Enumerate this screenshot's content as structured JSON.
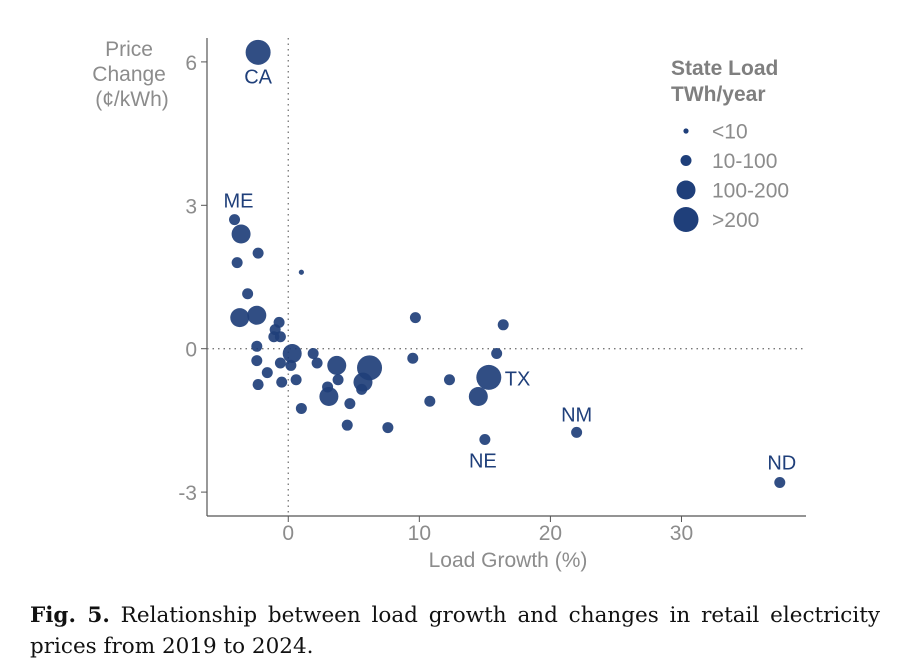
{
  "chart_data": {
    "type": "scatter",
    "title": "",
    "xlabel": "Load Growth (%)",
    "ylabel_lines": [
      "Price",
      "Change",
      "(¢/kWh)"
    ],
    "xlim": [
      -6.2,
      39.5
    ],
    "ylim": [
      -3.5,
      6.5
    ],
    "xticks": [
      0,
      10,
      20,
      30
    ],
    "yticks": [
      -3,
      0,
      3,
      6
    ],
    "xtick_labels": [
      "0",
      "10",
      "20",
      "30"
    ],
    "ytick_labels": [
      "-3",
      "0",
      "3",
      "6"
    ],
    "reference_lines": {
      "x": 0,
      "y": 0
    },
    "legend": {
      "title_lines": [
        "State Load",
        "TWh/year"
      ],
      "entries": [
        {
          "label": "<10",
          "size": "tiny"
        },
        {
          "label": "10-100",
          "size": "small"
        },
        {
          "label": "100-200",
          "size": "medium"
        },
        {
          "label": ">200",
          "size": "large"
        }
      ],
      "position": "top-right"
    },
    "marker_color": "#1f3f7a",
    "points": [
      {
        "x": -2.3,
        "y": 6.2,
        "size": "large",
        "label": "CA"
      },
      {
        "x": -4.1,
        "y": 2.7,
        "size": "small",
        "label": "ME"
      },
      {
        "x": -3.6,
        "y": 2.4,
        "size": "medium"
      },
      {
        "x": -2.3,
        "y": 2.0,
        "size": "small"
      },
      {
        "x": -3.9,
        "y": 1.8,
        "size": "small"
      },
      {
        "x": 1.0,
        "y": 1.6,
        "size": "tiny"
      },
      {
        "x": -3.1,
        "y": 1.15,
        "size": "small"
      },
      {
        "x": -3.7,
        "y": 0.65,
        "size": "medium"
      },
      {
        "x": -2.4,
        "y": 0.7,
        "size": "medium"
      },
      {
        "x": -0.7,
        "y": 0.55,
        "size": "small"
      },
      {
        "x": -1.0,
        "y": 0.4,
        "size": "small"
      },
      {
        "x": -1.1,
        "y": 0.25,
        "size": "small"
      },
      {
        "x": -0.6,
        "y": 0.25,
        "size": "small"
      },
      {
        "x": -2.4,
        "y": 0.05,
        "size": "small"
      },
      {
        "x": -2.4,
        "y": -0.25,
        "size": "small"
      },
      {
        "x": -1.6,
        "y": -0.5,
        "size": "small"
      },
      {
        "x": -2.3,
        "y": -0.75,
        "size": "small"
      },
      {
        "x": -0.6,
        "y": -0.3,
        "size": "small"
      },
      {
        "x": 0.3,
        "y": -0.1,
        "size": "medium"
      },
      {
        "x": 0.2,
        "y": -0.35,
        "size": "small"
      },
      {
        "x": -0.5,
        "y": -0.7,
        "size": "small"
      },
      {
        "x": 0.6,
        "y": -0.65,
        "size": "small"
      },
      {
        "x": 1.9,
        "y": -0.1,
        "size": "small"
      },
      {
        "x": 2.2,
        "y": -0.3,
        "size": "small"
      },
      {
        "x": 1.0,
        "y": -1.25,
        "size": "small"
      },
      {
        "x": 3.7,
        "y": -0.35,
        "size": "medium"
      },
      {
        "x": 3.8,
        "y": -0.65,
        "size": "small"
      },
      {
        "x": 3.0,
        "y": -0.8,
        "size": "small"
      },
      {
        "x": 3.1,
        "y": -1.0,
        "size": "medium"
      },
      {
        "x": 4.7,
        "y": -1.15,
        "size": "small"
      },
      {
        "x": 4.5,
        "y": -1.6,
        "size": "small"
      },
      {
        "x": 6.2,
        "y": -0.4,
        "size": "large"
      },
      {
        "x": 5.7,
        "y": -0.7,
        "size": "medium"
      },
      {
        "x": 5.6,
        "y": -0.85,
        "size": "small"
      },
      {
        "x": 7.6,
        "y": -1.65,
        "size": "small"
      },
      {
        "x": 9.7,
        "y": 0.65,
        "size": "small"
      },
      {
        "x": 9.5,
        "y": -0.2,
        "size": "small"
      },
      {
        "x": 10.8,
        "y": -1.1,
        "size": "small"
      },
      {
        "x": 12.3,
        "y": -0.65,
        "size": "small"
      },
      {
        "x": 14.5,
        "y": -1.0,
        "size": "medium"
      },
      {
        "x": 15.3,
        "y": -0.6,
        "size": "large",
        "label": "TX"
      },
      {
        "x": 15.0,
        "y": -1.9,
        "size": "small",
        "label": "NE"
      },
      {
        "x": 15.9,
        "y": -0.1,
        "size": "small"
      },
      {
        "x": 16.4,
        "y": 0.5,
        "size": "small"
      },
      {
        "x": 22.0,
        "y": -1.75,
        "size": "small",
        "label": "NM"
      },
      {
        "x": 37.5,
        "y": -2.8,
        "size": "small",
        "label": "ND"
      }
    ]
  },
  "caption": {
    "fig_label": "Fig. 5.",
    "text": "Relationship between load growth and changes in retail electricity prices from 2019 to 2024."
  }
}
